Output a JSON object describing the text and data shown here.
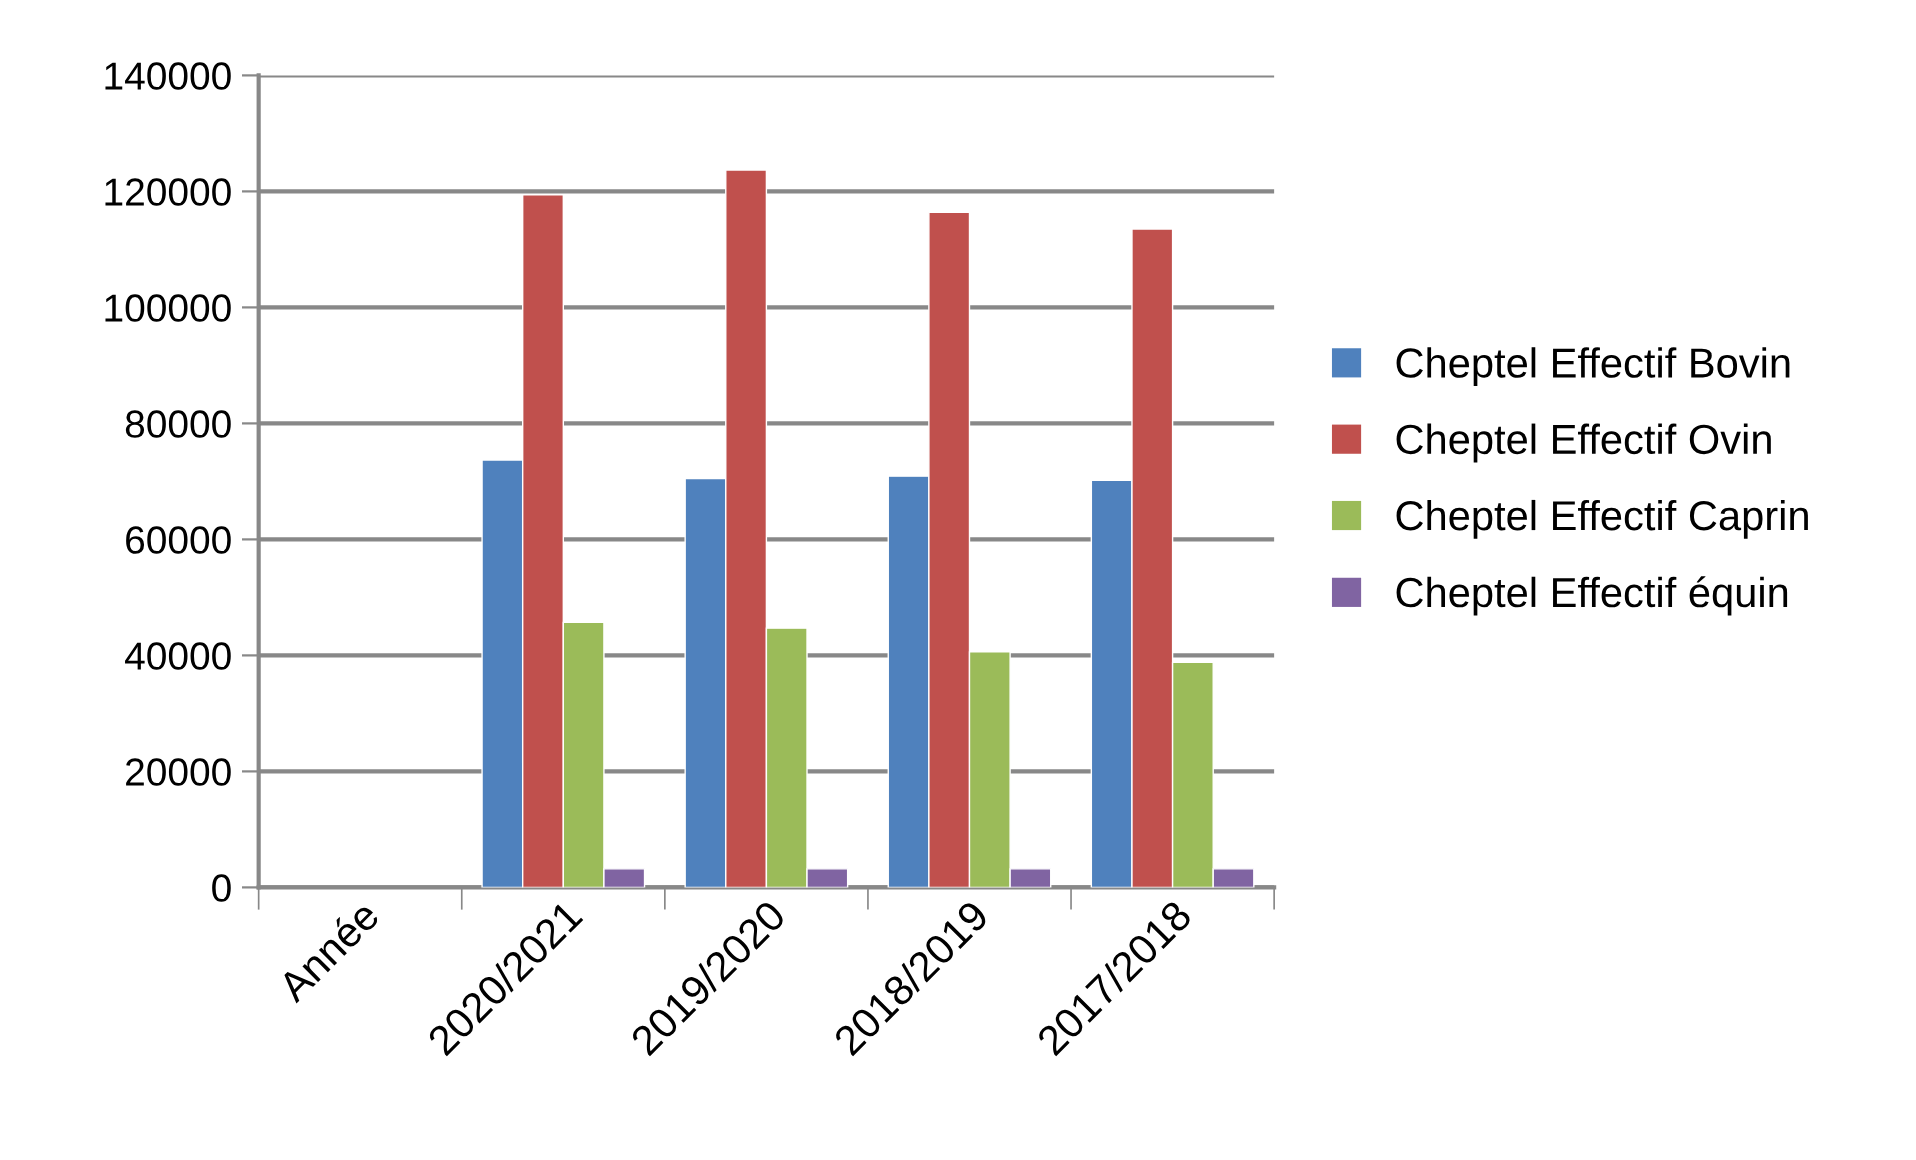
{
  "chart_data": {
    "type": "bar",
    "categories": [
      "Année",
      "2020/2021",
      "2019/2020",
      "2018/2019",
      "2017/2018"
    ],
    "series": [
      {
        "name": "Cheptel Effectif Bovin",
        "color": "#4f81bd",
        "values": [
          null,
          73700,
          70500,
          70900,
          70200
        ]
      },
      {
        "name": "Cheptel Effectif Ovin",
        "color": "#c0504d",
        "values": [
          null,
          119400,
          123700,
          116400,
          113500
        ]
      },
      {
        "name": "Cheptel Effectif Caprin",
        "color": "#9bbb59",
        "values": [
          null,
          45700,
          44700,
          40600,
          38800
        ]
      },
      {
        "name": "Cheptel Effectif équin",
        "color": "#8064a2",
        "values": [
          null,
          3200,
          3200,
          3200,
          3200
        ]
      }
    ],
    "ylim": [
      0,
      140000
    ],
    "yticks": [
      0,
      20000,
      40000,
      60000,
      80000,
      100000,
      120000,
      140000
    ],
    "grid": "y",
    "legend": "right"
  }
}
